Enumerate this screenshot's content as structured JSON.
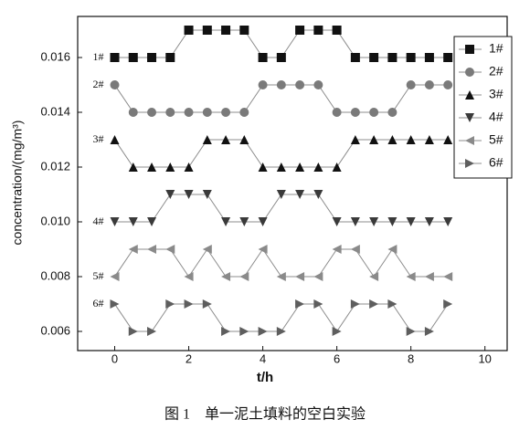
{
  "chart_data": {
    "type": "line",
    "x_label": "t/h",
    "y_label": "concentration/(mg/m³)",
    "caption": "图 1　单一泥土填料的空白实验",
    "x": [
      0,
      0.5,
      1,
      1.5,
      2,
      2.5,
      3,
      3.5,
      4,
      4.5,
      5,
      5.5,
      6,
      6.5,
      7,
      7.5,
      8,
      8.5,
      9
    ],
    "series": [
      {
        "name": "1#",
        "color": "#111111",
        "marker": "square",
        "values": [
          0.016,
          0.016,
          0.016,
          0.016,
          0.017,
          0.017,
          0.017,
          0.017,
          0.016,
          0.016,
          0.017,
          0.017,
          0.017,
          0.016,
          0.016,
          0.016,
          0.016,
          0.016,
          0.016
        ]
      },
      {
        "name": "2#",
        "color": "#7a7a7a",
        "marker": "circle",
        "values": [
          0.015,
          0.014,
          0.014,
          0.014,
          0.014,
          0.014,
          0.014,
          0.014,
          0.015,
          0.015,
          0.015,
          0.015,
          0.014,
          0.014,
          0.014,
          0.014,
          0.015,
          0.015,
          0.015
        ]
      },
      {
        "name": "3#",
        "color": "#111111",
        "marker": "up",
        "values": [
          0.013,
          0.012,
          0.012,
          0.012,
          0.012,
          0.013,
          0.013,
          0.013,
          0.012,
          0.012,
          0.012,
          0.012,
          0.012,
          0.013,
          0.013,
          0.013,
          0.013,
          0.013,
          0.013
        ]
      },
      {
        "name": "4#",
        "color": "#3a3a3a",
        "marker": "down",
        "values": [
          0.01,
          0.01,
          0.01,
          0.011,
          0.011,
          0.011,
          0.01,
          0.01,
          0.01,
          0.011,
          0.011,
          0.011,
          0.01,
          0.01,
          0.01,
          0.01,
          0.01,
          0.01,
          0.01
        ]
      },
      {
        "name": "5#",
        "color": "#8a8a8a",
        "marker": "left",
        "values": [
          0.008,
          0.009,
          0.009,
          0.009,
          0.008,
          0.009,
          0.008,
          0.008,
          0.009,
          0.008,
          0.008,
          0.008,
          0.009,
          0.009,
          0.008,
          0.009,
          0.008,
          0.008,
          0.008
        ]
      },
      {
        "name": "6#",
        "color": "#5e5e5e",
        "marker": "right",
        "values": [
          0.007,
          0.006,
          0.006,
          0.007,
          0.007,
          0.007,
          0.006,
          0.006,
          0.006,
          0.006,
          0.007,
          0.007,
          0.006,
          0.007,
          0.007,
          0.007,
          0.006,
          0.006,
          0.007
        ]
      }
    ],
    "annotations": [
      "1#",
      "2#",
      "3#",
      "4#",
      "5#",
      "6#"
    ],
    "xlim": [
      -1,
      10.6
    ],
    "xticks": [
      0,
      2,
      4,
      6,
      8,
      10
    ],
    "ylim": [
      0.0053,
      0.0175
    ],
    "yticks": [
      0.006,
      0.008,
      {
        "value": 0.01,
        "label": "0.010"
      },
      0.012,
      0.014,
      0.016
    ],
    "legend": "upper right",
    "line_color": "#8c8c8c"
  }
}
